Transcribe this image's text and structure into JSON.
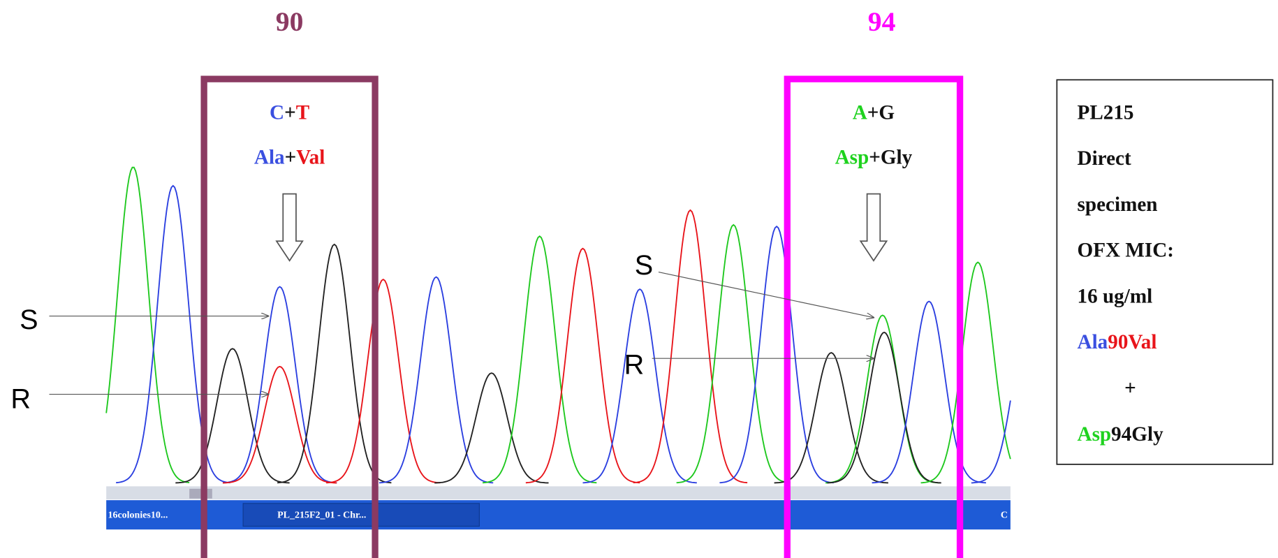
{
  "header": {
    "pos90": "90",
    "pos94": "94"
  },
  "site90": {
    "bases": [
      {
        "text": "C",
        "color": "#3a4fe0"
      },
      {
        "text": "+",
        "color": "#111111"
      },
      {
        "text": "T",
        "color": "#e8141a"
      }
    ],
    "amino": [
      {
        "text": "Ala",
        "color": "#3a4fe0"
      },
      {
        "text": "+",
        "color": "#111111"
      },
      {
        "text": "Val",
        "color": "#e8141a"
      }
    ]
  },
  "site94": {
    "bases": [
      {
        "text": "A",
        "color": "#1ed21e"
      },
      {
        "text": "+",
        "color": "#111111"
      },
      {
        "text": "G",
        "color": "#111111"
      }
    ],
    "amino": [
      {
        "text": "Asp",
        "color": "#1ed21e"
      },
      {
        "text": "+",
        "color": "#111111"
      },
      {
        "text": "Gly",
        "color": "#111111"
      }
    ]
  },
  "labels": {
    "s_left": "S",
    "r_left": "R",
    "s_right": "S",
    "r_right": "R"
  },
  "info_box": {
    "lines": [
      [
        {
          "text": "PL215",
          "color": "#111111"
        }
      ],
      [
        {
          "text": "Direct",
          "color": "#111111"
        }
      ],
      [
        {
          "text": "specimen",
          "color": "#111111"
        }
      ],
      [
        {
          "text": "OFX MIC:",
          "color": "#111111"
        }
      ],
      [
        {
          "text": "16 ug/ml",
          "color": "#111111"
        }
      ],
      [
        {
          "text": "Ala",
          "color": "#3a4fe0"
        },
        {
          "text": "90Val",
          "color": "#e8141a"
        }
      ],
      [
        {
          "text": "+",
          "color": "#111111"
        }
      ],
      [
        {
          "text": "Asp",
          "color": "#1ed21e"
        },
        {
          "text": "94Gly",
          "color": "#111111"
        }
      ]
    ]
  },
  "taskbar": {
    "items": [
      "16colonies10...",
      "PL_215F2_01 - Chr..."
    ],
    "tail": "C"
  }
}
